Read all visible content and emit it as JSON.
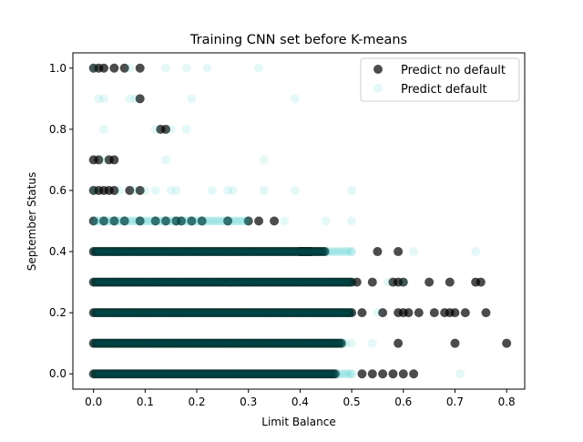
{
  "chart_data": {
    "type": "scatter",
    "title": "Training CNN set before K-means",
    "xlabel": "Limit Balance",
    "ylabel": "September Status",
    "xlim": [
      -0.04,
      0.835
    ],
    "ylim": [
      -0.05,
      1.05
    ],
    "xticks": [
      "0.0",
      "0.1",
      "0.2",
      "0.3",
      "0.4",
      "0.5",
      "0.6",
      "0.7",
      "0.8"
    ],
    "yticks": [
      "0.0",
      "0.2",
      "0.4",
      "0.6",
      "0.8",
      "1.0"
    ],
    "grid": false,
    "legend_position": "upper-right",
    "series": [
      {
        "name": "Predict no default",
        "color": "#000000",
        "alpha": 0.7,
        "points": [
          [
            0.0,
            1.0
          ],
          [
            0.01,
            1.0
          ],
          [
            0.02,
            1.0
          ],
          [
            0.04,
            1.0
          ],
          [
            0.06,
            1.0
          ],
          [
            0.09,
            1.0
          ],
          [
            0.09,
            0.9
          ],
          [
            0.13,
            0.8
          ],
          [
            0.14,
            0.8
          ],
          [
            0.0,
            0.7
          ],
          [
            0.01,
            0.7
          ],
          [
            0.03,
            0.7
          ],
          [
            0.04,
            0.7
          ],
          [
            0.0,
            0.6
          ],
          [
            0.01,
            0.6
          ],
          [
            0.02,
            0.6
          ],
          [
            0.03,
            0.6
          ],
          [
            0.04,
            0.6
          ],
          [
            0.07,
            0.6
          ],
          [
            0.09,
            0.6
          ],
          [
            0.0,
            0.5
          ],
          [
            0.02,
            0.5
          ],
          [
            0.04,
            0.5
          ],
          [
            0.06,
            0.5
          ],
          [
            0.09,
            0.5
          ],
          [
            0.12,
            0.5
          ],
          [
            0.14,
            0.5
          ],
          [
            0.16,
            0.5
          ],
          [
            0.17,
            0.5
          ],
          [
            0.19,
            0.5
          ],
          [
            0.21,
            0.5
          ],
          [
            0.26,
            0.5
          ],
          [
            0.3,
            0.5
          ],
          [
            0.32,
            0.5
          ],
          [
            0.35,
            0.5
          ],
          [
            0.55,
            0.4
          ],
          [
            0.59,
            0.4
          ],
          [
            0.51,
            0.3
          ],
          [
            0.54,
            0.3
          ],
          [
            0.58,
            0.3
          ],
          [
            0.59,
            0.3
          ],
          [
            0.6,
            0.3
          ],
          [
            0.65,
            0.3
          ],
          [
            0.69,
            0.3
          ],
          [
            0.74,
            0.3
          ],
          [
            0.75,
            0.3
          ],
          [
            0.52,
            0.2
          ],
          [
            0.56,
            0.2
          ],
          [
            0.59,
            0.2
          ],
          [
            0.6,
            0.2
          ],
          [
            0.61,
            0.2
          ],
          [
            0.63,
            0.2
          ],
          [
            0.66,
            0.2
          ],
          [
            0.68,
            0.2
          ],
          [
            0.69,
            0.2
          ],
          [
            0.7,
            0.2
          ],
          [
            0.72,
            0.2
          ],
          [
            0.76,
            0.2
          ],
          [
            0.59,
            0.1
          ],
          [
            0.7,
            0.1
          ],
          [
            0.8,
            0.1
          ],
          [
            0.52,
            0.0
          ],
          [
            0.54,
            0.0
          ],
          [
            0.56,
            0.0
          ],
          [
            0.58,
            0.0
          ],
          [
            0.6,
            0.0
          ],
          [
            0.62,
            0.0
          ]
        ],
        "dense_ranges": [
          [
            0.4,
            0.0,
            0.45
          ],
          [
            0.4,
            0.4,
            0.42
          ],
          [
            0.3,
            0.0,
            0.5
          ],
          [
            0.2,
            0.0,
            0.5
          ],
          [
            0.1,
            0.0,
            0.48
          ],
          [
            0.0,
            0.0,
            0.47
          ]
        ]
      },
      {
        "name": "Predict default",
        "color": "#00bfbf",
        "alpha": 0.1,
        "points": [
          [
            0.0,
            1.0
          ],
          [
            0.07,
            1.0
          ],
          [
            0.14,
            1.0
          ],
          [
            0.18,
            1.0
          ],
          [
            0.22,
            1.0
          ],
          [
            0.32,
            1.0
          ],
          [
            0.01,
            0.9
          ],
          [
            0.02,
            0.9
          ],
          [
            0.07,
            0.9
          ],
          [
            0.08,
            0.9
          ],
          [
            0.19,
            0.9
          ],
          [
            0.39,
            0.9
          ],
          [
            0.02,
            0.8
          ],
          [
            0.12,
            0.8
          ],
          [
            0.15,
            0.8
          ],
          [
            0.18,
            0.8
          ],
          [
            0.02,
            0.7
          ],
          [
            0.14,
            0.7
          ],
          [
            0.33,
            0.7
          ],
          [
            0.0,
            0.6
          ],
          [
            0.05,
            0.6
          ],
          [
            0.08,
            0.6
          ],
          [
            0.1,
            0.6
          ],
          [
            0.12,
            0.6
          ],
          [
            0.15,
            0.6
          ],
          [
            0.16,
            0.6
          ],
          [
            0.23,
            0.6
          ],
          [
            0.26,
            0.6
          ],
          [
            0.27,
            0.6
          ],
          [
            0.33,
            0.6
          ],
          [
            0.39,
            0.6
          ],
          [
            0.5,
            0.6
          ],
          [
            0.37,
            0.5
          ],
          [
            0.45,
            0.5
          ],
          [
            0.5,
            0.5
          ],
          [
            0.5,
            0.4
          ],
          [
            0.62,
            0.4
          ],
          [
            0.74,
            0.4
          ],
          [
            0.57,
            0.3
          ],
          [
            0.6,
            0.3
          ],
          [
            0.55,
            0.2
          ],
          [
            0.5,
            0.1
          ],
          [
            0.54,
            0.1
          ],
          [
            0.5,
            0.0
          ],
          [
            0.71,
            0.0
          ]
        ],
        "dense_ranges": [
          [
            0.5,
            0.0,
            0.3
          ],
          [
            0.4,
            0.0,
            0.5
          ],
          [
            0.3,
            0.0,
            0.5
          ],
          [
            0.2,
            0.0,
            0.5
          ],
          [
            0.1,
            0.0,
            0.49
          ],
          [
            0.0,
            0.0,
            0.5
          ]
        ]
      }
    ]
  }
}
